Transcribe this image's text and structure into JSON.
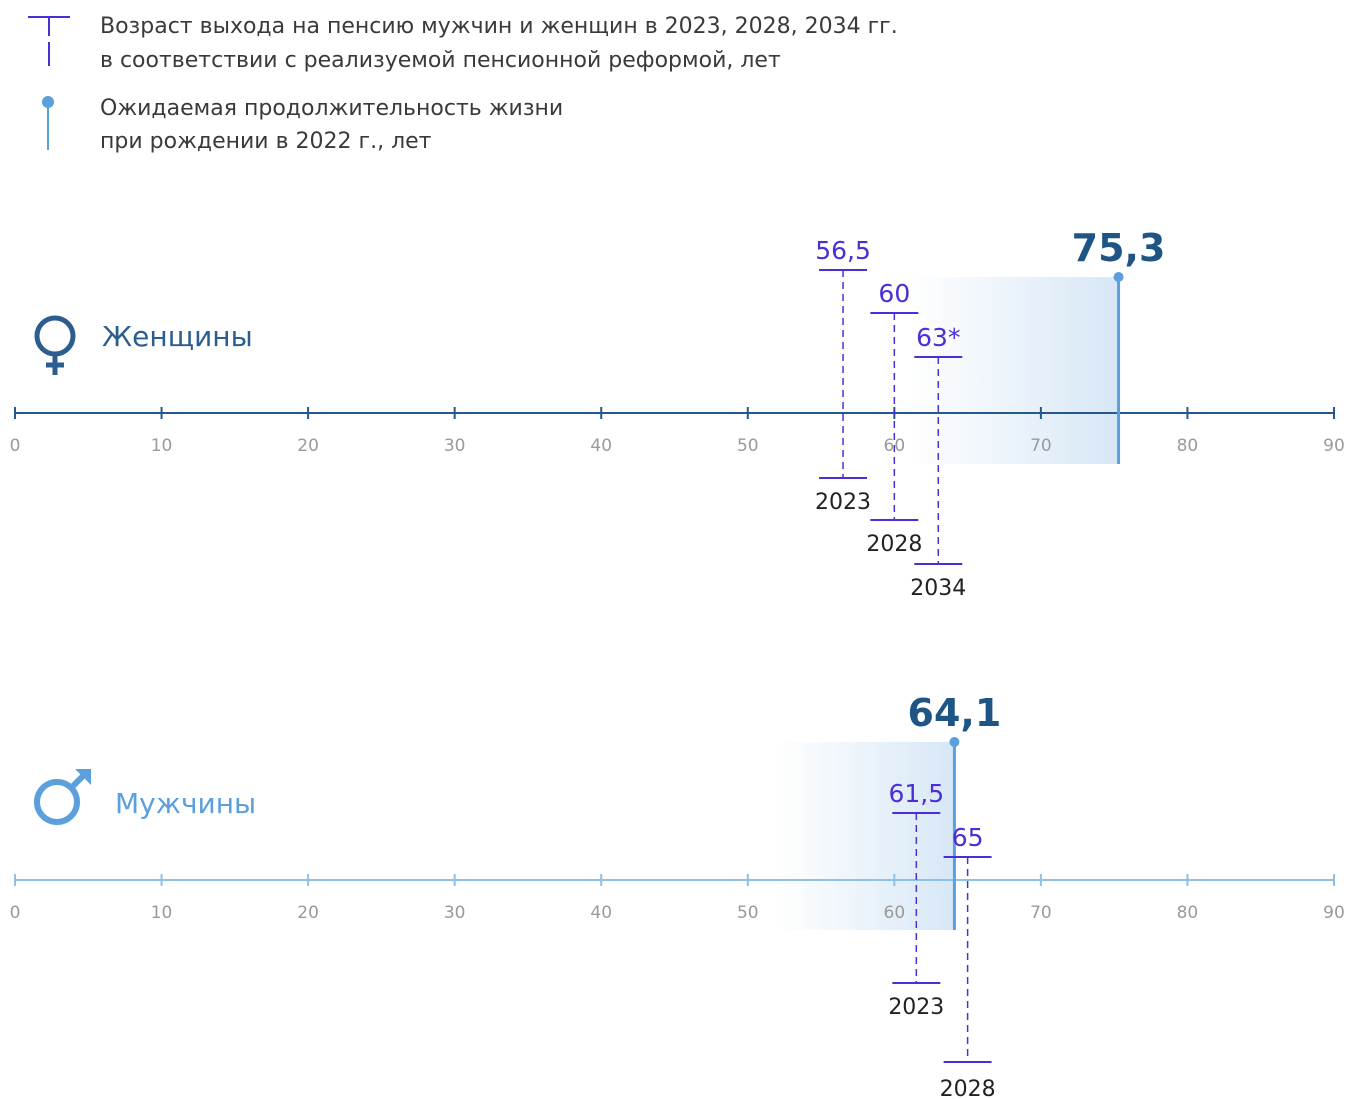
{
  "legend": {
    "retirement": {
      "line1": "Возраст выхода на пенсию мужчин и женщин в 2023, 2028, 2034 гг.",
      "line2": "в соответствии с реализуемой пенсионной реформой, лет"
    },
    "life_expectancy": {
      "line1": "Ожидаемая  продолжительность жизни",
      "line2": "при рождении в 2022 г., лет"
    }
  },
  "colors": {
    "retirement": "#4b2fd6",
    "women_axis": "#23598c",
    "men_axis": "#8fc0e8",
    "life_line": "#5b9fdc",
    "life_value": "#1f5585",
    "women_label": "#2c5d8f",
    "men_label": "#5b9fdc",
    "shade": "#d7e7f6"
  },
  "chart_data": [
    {
      "type": "timeline",
      "group": "Женщины",
      "axis": {
        "min": 0,
        "max": 90,
        "ticks": [
          "0",
          "10",
          "20",
          "30",
          "40",
          "50",
          "60",
          "70",
          "80",
          "90"
        ]
      },
      "life_expectancy": {
        "value": 75.3,
        "label": "75,3"
      },
      "retirement_ages": [
        {
          "year": "2023",
          "value": 56.5,
          "label": "56,5"
        },
        {
          "year": "2028",
          "value": 60,
          "label": "60"
        },
        {
          "year": "2034",
          "value": 63,
          "label": "63*"
        }
      ]
    },
    {
      "type": "timeline",
      "group": "Мужчины",
      "axis": {
        "min": 0,
        "max": 90,
        "ticks": [
          "0",
          "10",
          "20",
          "30",
          "40",
          "50",
          "60",
          "70",
          "80",
          "90"
        ]
      },
      "life_expectancy": {
        "value": 64.1,
        "label": "64,1"
      },
      "retirement_ages": [
        {
          "year": "2023",
          "value": 61.5,
          "label": "61,5"
        },
        {
          "year": "2028",
          "value": 65,
          "label": "65"
        }
      ]
    }
  ]
}
